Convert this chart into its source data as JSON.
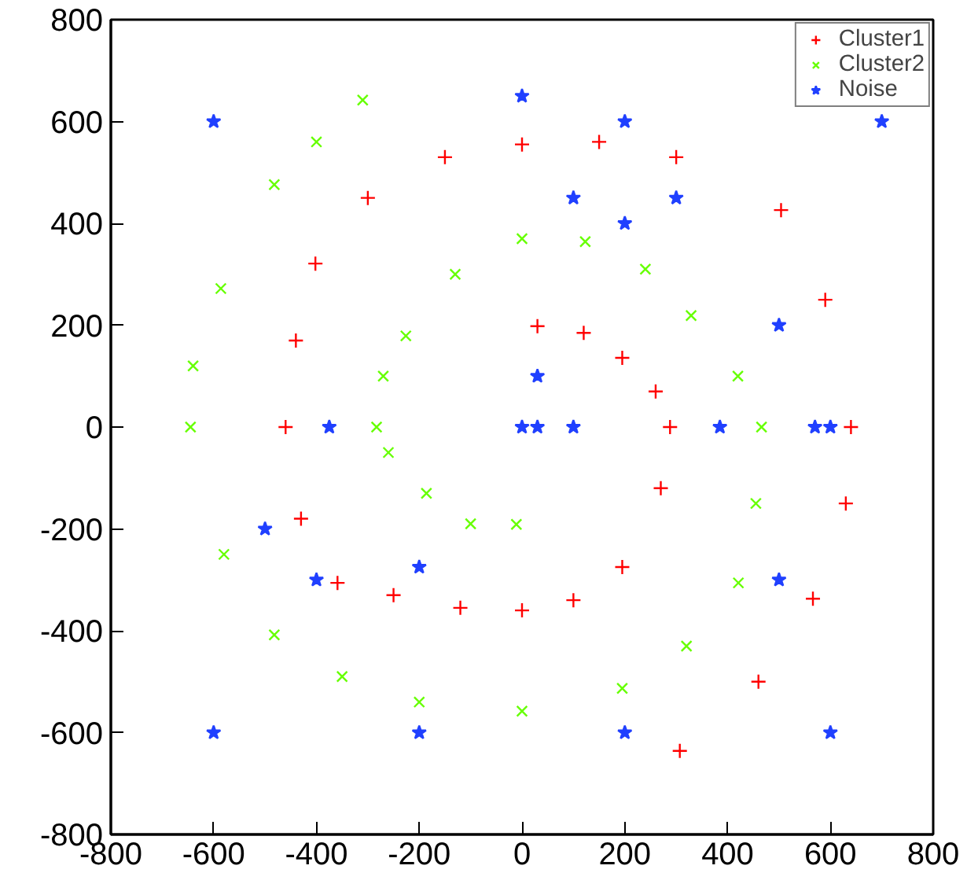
{
  "chart_data": {
    "type": "scatter",
    "xlim": [
      -800,
      800
    ],
    "ylim": [
      -800,
      800
    ],
    "xticks": [
      -800,
      -600,
      -400,
      -200,
      0,
      200,
      400,
      600,
      800
    ],
    "yticks": [
      -800,
      -600,
      -400,
      -200,
      0,
      200,
      400,
      600,
      800
    ],
    "grid": false,
    "legend": "top right",
    "series": [
      {
        "name": "Cluster1",
        "color": "#ff0000",
        "marker": "cross",
        "x": [
          30,
          120,
          195,
          260,
          288,
          270,
          195,
          100,
          0,
          -120,
          -250,
          -359,
          -430,
          -460,
          -440,
          -402,
          -300,
          -150,
          0,
          150,
          300,
          504,
          590,
          640,
          630,
          566,
          460,
          307
        ],
        "values": [
          198,
          185,
          136,
          70,
          0,
          -120,
          -275,
          -340,
          -360,
          -355,
          -330,
          -306,
          -180,
          0,
          170,
          321,
          450,
          530,
          555,
          560,
          530,
          426,
          250,
          0,
          -150,
          -337,
          -500,
          -636
        ]
      },
      {
        "name": "Cluster2",
        "color": "#66ff00",
        "marker": "x",
        "x": [
          -11,
          -100,
          -186,
          -260,
          -283,
          -270,
          -226,
          -130,
          0,
          123,
          240,
          329,
          420,
          466,
          455,
          421,
          320,
          195,
          0,
          -200,
          -350,
          -482,
          -580,
          -645,
          -640,
          -586,
          -482,
          -400,
          -310
        ],
        "values": [
          -191,
          -190,
          -130,
          -50,
          0,
          100,
          179,
          300,
          370,
          364,
          310,
          219,
          100,
          0,
          -150,
          -306,
          -430,
          -513,
          -558,
          -540,
          -490,
          -408,
          -250,
          0,
          120,
          272,
          476,
          560,
          642
        ]
      },
      {
        "name": "Noise",
        "color": "#2040ff",
        "marker": "star",
        "x": [
          -600,
          0,
          700,
          200,
          100,
          200,
          300,
          500,
          30,
          -375,
          0,
          30,
          100,
          385,
          570,
          600,
          -500,
          -400,
          -200,
          500,
          -600,
          -200,
          200,
          600
        ],
        "values": [
          600,
          650,
          600,
          600,
          450,
          400,
          450,
          200,
          100,
          0,
          0,
          0,
          0,
          0,
          0,
          0,
          -200,
          -300,
          -275,
          -300,
          -600,
          -600,
          -600,
          -600
        ]
      }
    ]
  }
}
